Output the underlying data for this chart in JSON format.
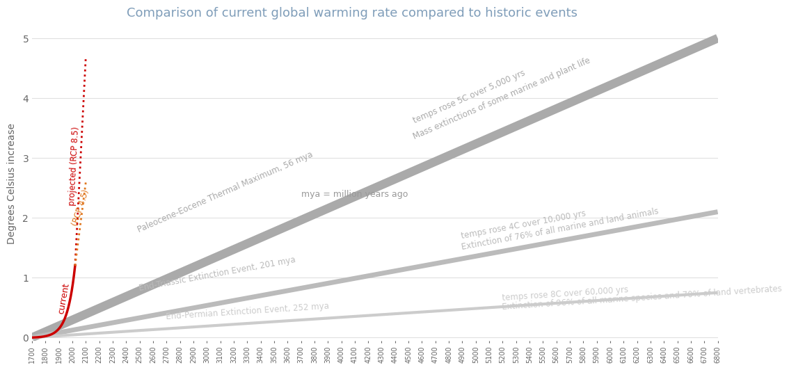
{
  "title": "Comparison of current global warming rate compared to historic events",
  "title_color": "#7f9db9",
  "ylabel": "Degrees Celsius increase",
  "ylabel_color": "#666666",
  "bg_color": "#ffffff",
  "xlim": [
    1700,
    6800
  ],
  "ylim": [
    -0.05,
    5.2
  ],
  "yticks": [
    0,
    1,
    2,
    3,
    4,
    5
  ],
  "xtick_start": 1700,
  "xtick_end": 6800,
  "xtick_step": 100,
  "current_x_start": 1700,
  "current_x_end": 2020,
  "current_y_end": 1.2,
  "current_label": "current",
  "current_color": "#cc0000",
  "rcp85_x_start": 2020,
  "rcp85_x_end": 2100,
  "rcp85_y_start": 1.2,
  "rcp85_y_end": 4.7,
  "rcp85_label": "projected (RCP 8.5)",
  "rcp85_color": "#cc0000",
  "rcp45_x_start": 2020,
  "rcp45_x_end": 2100,
  "rcp45_y_start": 1.2,
  "rcp45_y_end": 2.6,
  "rcp45_label": "(RCP 4.5)",
  "rcp45_color": "#e07820",
  "petm_y_end": 5.0,
  "petm_color": "#aaaaaa",
  "petm_lw": 9,
  "petm_label1": "Paleocene-Eocene Thermal Maximum, 56 mya",
  "petm_label2": "temps rose 5C over 5,000 yrs",
  "petm_label3": "Mass extinctions of some marine and plant life",
  "triassic_y_end": 2.1,
  "triassic_color": "#bbbbbb",
  "triassic_lw": 5,
  "triassic_label1": "End-Triassic Extinction Event, 201 mya",
  "triassic_label2": "temps rose 4C over 10,000 yrs",
  "triassic_label3": "Extinction of 76% of all marine and land animals",
  "permian_y_end": 0.75,
  "permian_color": "#cccccc",
  "permian_lw": 3,
  "permian_label1": "End-Permian Extinction Event, 252 mya",
  "permian_label2": "temps rose 8C over 60,000 yrs",
  "permian_label3": "Extinction of 96% of all marine species and 70% of land vertebrates",
  "mya_note": "mya = million years ago",
  "tick_color": "#666666",
  "tick_fontsize": 7,
  "grid_color": "#e0e0e0"
}
